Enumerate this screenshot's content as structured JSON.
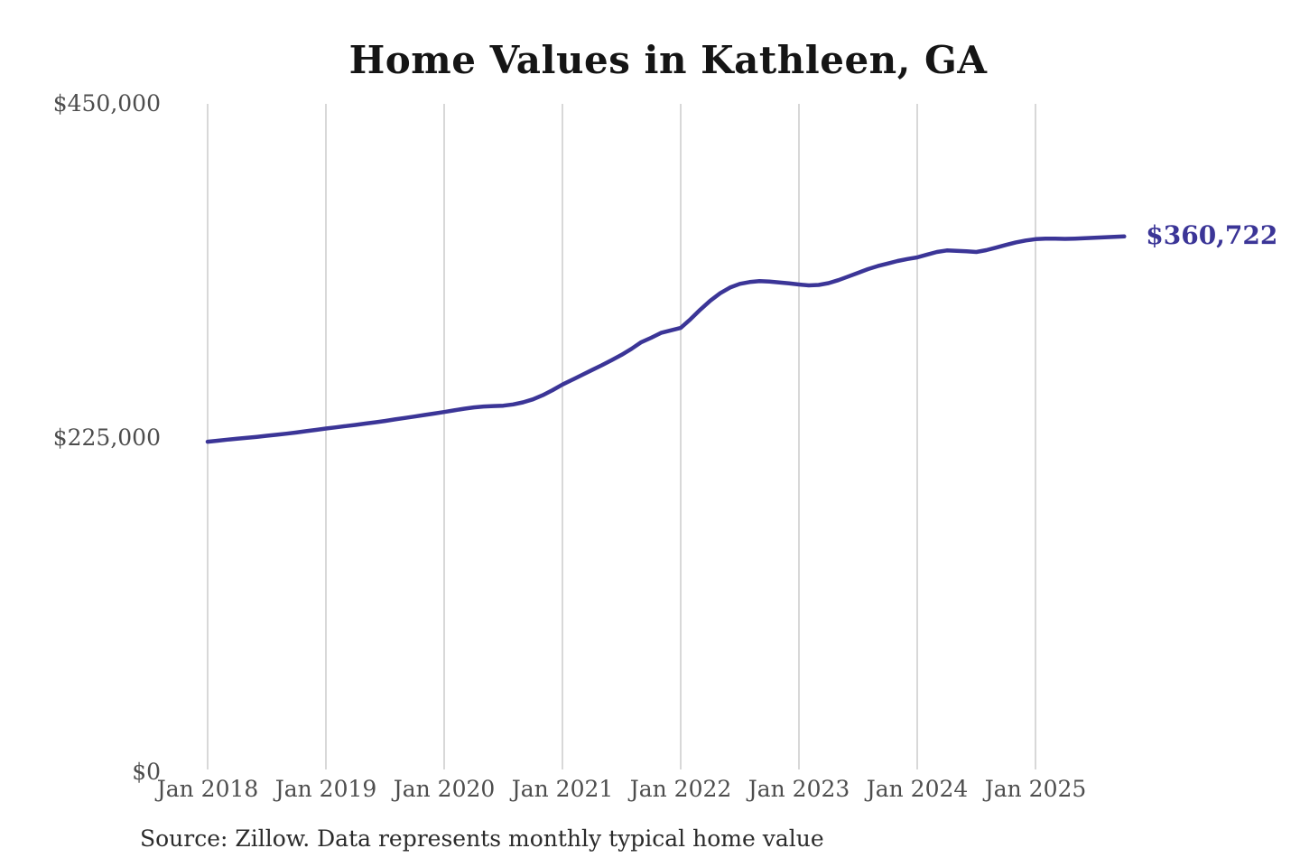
{
  "chart": {
    "title": "Home Values in Kathleen, GA",
    "source_note": "Source: Zillow. Data represents monthly typical home value",
    "end_value_label": "$360,722",
    "colors": {
      "line": "#3b3597",
      "grid": "#cccccc",
      "title_text": "#151515",
      "axis_text": "#4d4d4d",
      "end_label_text": "#3b3597",
      "source_text": "#2b2b2b",
      "background": "#ffffff"
    }
  },
  "chart_data": {
    "type": "line",
    "title": "Home Values in Kathleen, GA",
    "xlabel": "",
    "ylabel": "",
    "ylim": [
      0,
      450000
    ],
    "grid": "vertical-only",
    "legend": "none",
    "x_ticks": [
      "Jan 2018",
      "Jan 2019",
      "Jan 2020",
      "Jan 2021",
      "Jan 2022",
      "Jan 2023",
      "Jan 2024",
      "Jan 2025"
    ],
    "y_ticks": [
      {
        "label": "$0",
        "value": 0
      },
      {
        "label": "$225,000",
        "value": 225000
      },
      {
        "label": "$450,000",
        "value": 450000
      }
    ],
    "end_annotation": {
      "label": "$360,722",
      "value": 360722
    },
    "source": "Source: Zillow. Data represents monthly typical home value",
    "series": [
      {
        "name": "Monthly typical home value (USD)",
        "start_month": "2018-01",
        "end_month": "2025-10",
        "interval": "monthly",
        "values": [
          222500,
          223200,
          223900,
          224600,
          225200,
          225800,
          226500,
          227200,
          227900,
          228700,
          229600,
          230500,
          231400,
          232200,
          233000,
          233800,
          234700,
          235600,
          236500,
          237500,
          238500,
          239500,
          240500,
          241500,
          242500,
          243600,
          244700,
          245600,
          246200,
          246500,
          246800,
          247600,
          249000,
          251000,
          253800,
          257200,
          261000,
          264200,
          267500,
          270800,
          274000,
          277500,
          281000,
          285000,
          289500,
          292500,
          295800,
          297500,
          299100,
          305000,
          311500,
          317500,
          322500,
          326300,
          328800,
          330000,
          330600,
          330400,
          329800,
          329100,
          328400,
          327800,
          328100,
          329300,
          331300,
          333700,
          336200,
          338700,
          340800,
          342500,
          344200,
          345500,
          346600,
          348500,
          350300,
          351300,
          351000,
          350700,
          350300,
          351500,
          353200,
          355000,
          356700,
          358000,
          358900,
          359300,
          359200,
          359100,
          359300,
          359600,
          359900,
          360200,
          360500,
          360722
        ]
      }
    ]
  }
}
